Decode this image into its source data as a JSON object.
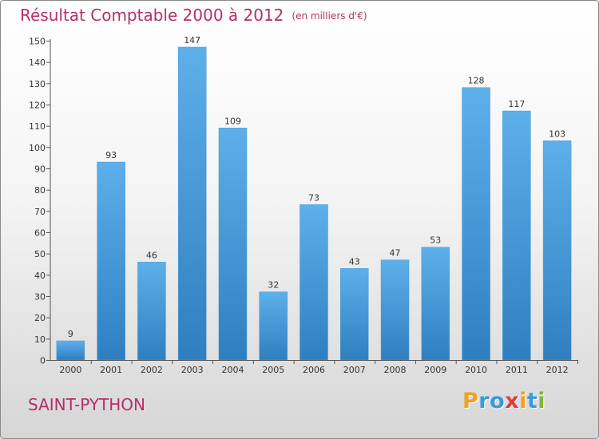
{
  "header": {
    "title": "Résultat Comptable 2000 à 2012",
    "subtitle": "(en milliers d'€)"
  },
  "footer": {
    "place": "SAINT-PYTHON",
    "logo_letters": [
      "P",
      "r",
      "o",
      "x",
      "i",
      "t",
      "i"
    ],
    "logo_colors": [
      "#f0a020",
      "#3a9ad9",
      "#3a9ad9",
      "#e23a3a",
      "#f0a020",
      "#3a9ad9",
      "#7ab83a"
    ]
  },
  "colors": {
    "bar_light": "#5db0ea",
    "bar_dark": "#2f7fc0",
    "accent": "#b52f68"
  },
  "chart_data": {
    "type": "bar",
    "categories": [
      "2000",
      "2001",
      "2002",
      "2003",
      "2004",
      "2005",
      "2006",
      "2007",
      "2008",
      "2009",
      "2010",
      "2011",
      "2012"
    ],
    "values": [
      9,
      93,
      46,
      147,
      109,
      32,
      73,
      43,
      47,
      53,
      128,
      117,
      103
    ],
    "title": "Résultat Comptable 2000 à 2012",
    "xlabel": "",
    "ylabel": "",
    "ylim": [
      0,
      150
    ],
    "yticks": [
      0,
      10,
      20,
      30,
      40,
      50,
      60,
      70,
      80,
      90,
      100,
      110,
      120,
      130,
      140,
      150
    ],
    "grid": false
  }
}
